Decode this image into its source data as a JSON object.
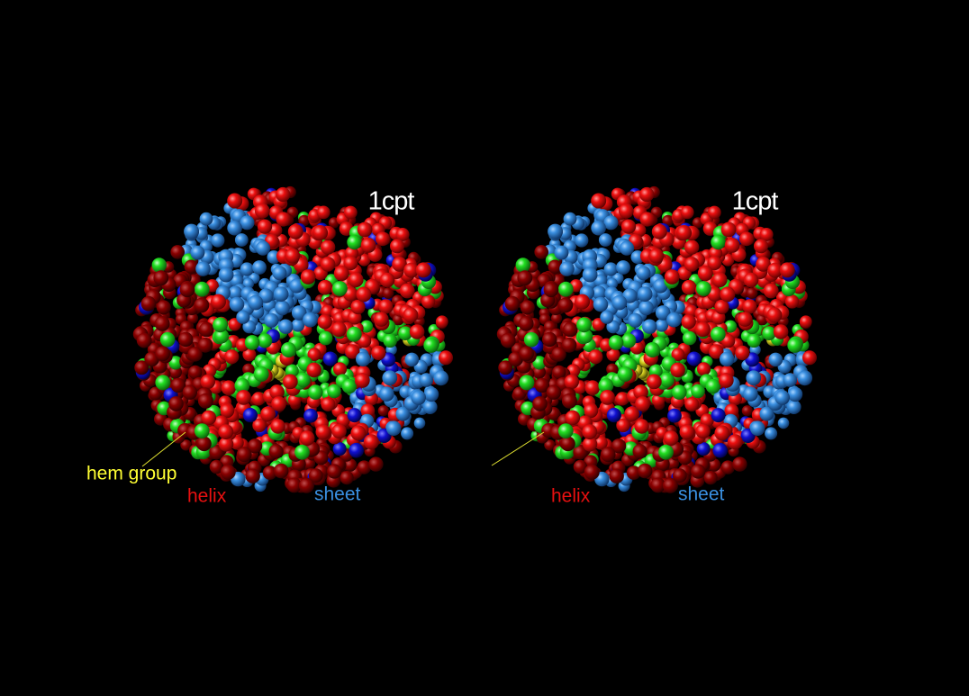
{
  "left": {
    "title": "1cpt",
    "hem_label": "hem group",
    "helix_label": "helix",
    "sheet_label": "sheet"
  },
  "right": {
    "title": "1cpt",
    "helix_label": "helix",
    "sheet_label": "sheet"
  }
}
